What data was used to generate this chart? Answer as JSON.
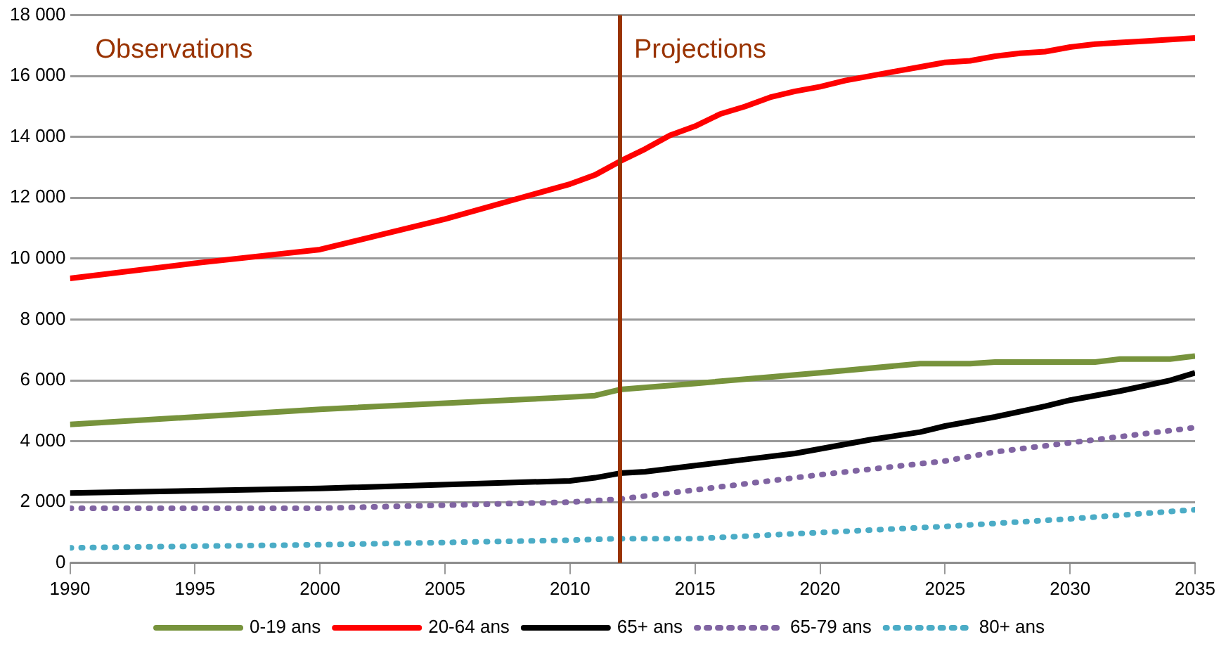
{
  "chart_data": {
    "type": "line",
    "x": [
      1990,
      1995,
      2000,
      2005,
      2010,
      2011,
      2012,
      2013,
      2014,
      2015,
      2016,
      2017,
      2018,
      2019,
      2020,
      2021,
      2022,
      2023,
      2024,
      2025,
      2026,
      2027,
      2028,
      2029,
      2030,
      2031,
      2032,
      2033,
      2034,
      2035
    ],
    "series": [
      {
        "name": "0-19 ans",
        "color": "#77933c",
        "line_style": "solid",
        "x": [
          1990,
          2000,
          2010,
          2011,
          2012,
          2015,
          2020,
          2024,
          2026,
          2027,
          2031,
          2032,
          2034,
          2035
        ],
        "values": [
          4550,
          5050,
          5450,
          5500,
          5700,
          5900,
          6250,
          6550,
          6550,
          6600,
          6600,
          6700,
          6700,
          6800
        ]
      },
      {
        "name": "20-64 ans",
        "color": "#ff0000",
        "line_style": "solid",
        "values": [
          9350,
          9850,
          10300,
          11300,
          12450,
          12750,
          13200,
          13600,
          14050,
          14350,
          14750,
          15000,
          15300,
          15500,
          15650,
          15850,
          16000,
          16150,
          16300,
          16450,
          16500,
          16650,
          16750,
          16800,
          16950,
          17050,
          17100,
          17150,
          17200,
          17250
        ]
      },
      {
        "name": "65+ ans",
        "color": "#000000",
        "line_style": "solid",
        "x": [
          1990,
          2000,
          2010,
          2011,
          2012,
          2013,
          2015,
          2017,
          2019,
          2020,
          2022,
          2024,
          2025,
          2027,
          2029,
          2030,
          2032,
          2034,
          2035
        ],
        "values": [
          2300,
          2450,
          2700,
          2800,
          2950,
          3000,
          3200,
          3400,
          3600,
          3750,
          4050,
          4300,
          4500,
          4800,
          5150,
          5350,
          5650,
          6000,
          6250
        ]
      },
      {
        "name": "65-79 ans",
        "color": "#8064a2",
        "line_style": "dotted",
        "x": [
          1990,
          2000,
          2010,
          2012,
          2015,
          2020,
          2025,
          2027,
          2030,
          2035
        ],
        "values": [
          1800,
          1800,
          2000,
          2100,
          2400,
          2900,
          3350,
          3650,
          3950,
          4450
        ]
      },
      {
        "name": "80+ ans",
        "color": "#4bacc6",
        "line_style": "dotted",
        "x": [
          1990,
          2000,
          2010,
          2012,
          2015,
          2020,
          2025,
          2030,
          2035
        ],
        "values": [
          500,
          600,
          750,
          800,
          800,
          1000,
          1200,
          1450,
          1750
        ]
      }
    ],
    "xlim": [
      1990,
      2035
    ],
    "xticks": [
      1990,
      1995,
      2000,
      2005,
      2010,
      2015,
      2020,
      2025,
      2030,
      2035
    ],
    "ylim": [
      0,
      18000
    ],
    "yticks": [
      0,
      {
        "value": 2000,
        "label": "2 000"
      },
      {
        "value": 4000,
        "label": "4 000"
      },
      {
        "value": 6000,
        "label": "6 000"
      },
      {
        "value": 8000,
        "label": "8 000"
      },
      {
        "value": 10000,
        "label": "10 000"
      },
      {
        "value": 12000,
        "label": "12 000"
      },
      {
        "value": 14000,
        "label": "14 000"
      },
      {
        "value": 16000,
        "label": "16 000"
      },
      {
        "value": 18000,
        "label": "18 000"
      }
    ],
    "ref_lines": [
      {
        "axis": "x",
        "value": 2012,
        "color": "#993300"
      }
    ],
    "annotations": [
      "Observations",
      "Projections"
    ],
    "grid": "y",
    "legend": "bottom",
    "marker": "none"
  }
}
